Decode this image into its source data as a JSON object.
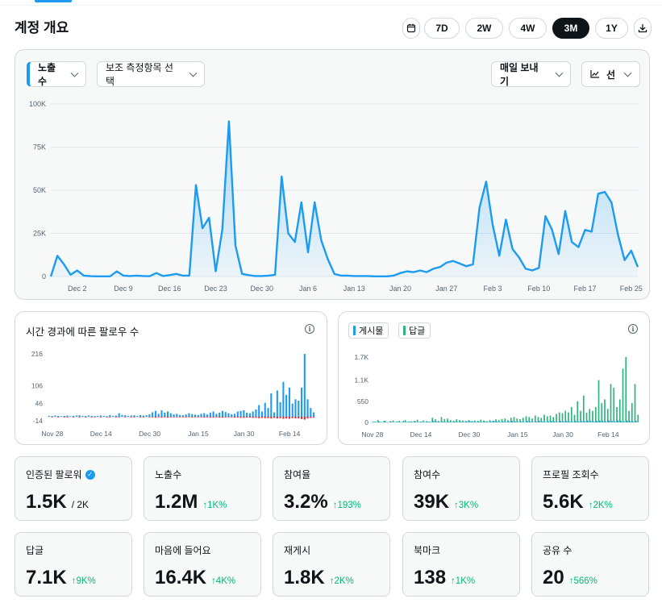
{
  "header": {
    "title": "계정 개요",
    "ranges": [
      "7D",
      "2W",
      "4W",
      "3M",
      "1Y"
    ],
    "active_range": "3M"
  },
  "main_chart_controls": {
    "metric_label": "노출수",
    "secondary_label": "보조 측정항목 선택",
    "export_label": "매일 보내기",
    "chart_type_label": "선"
  },
  "followers_chart": {
    "title": "시간 경과에 따른 팔로우 수"
  },
  "posts_chart": {
    "legend_posts": "게시물",
    "legend_replies": "답글"
  },
  "colors": {
    "accent": "#1d9bf0",
    "positive": "#00ba7c",
    "negative": "#f4212e",
    "reply_green": "#2db37e"
  },
  "chart_data": [
    {
      "type": "area",
      "title": "노출수",
      "ylim": [
        0,
        100000
      ],
      "yticks": [
        0,
        25000,
        50000,
        75000,
        100000
      ],
      "ytick_labels": [
        "0",
        "25K",
        "50K",
        "75K",
        "100K"
      ],
      "xtick_labels": [
        "Dec 2",
        "Dec 9",
        "Dec 16",
        "Dec 23",
        "Dec 30",
        "Jan 6",
        "Jan 13",
        "Jan 20",
        "Jan 27",
        "Feb 3",
        "Feb 10",
        "Feb 17",
        "Feb 25"
      ],
      "xtick_index": [
        4,
        11,
        18,
        25,
        32,
        39,
        46,
        53,
        60,
        67,
        74,
        81,
        88
      ],
      "values": [
        0,
        12000,
        7000,
        1000,
        3500,
        500,
        200,
        100,
        100,
        100,
        3000,
        500,
        300,
        500,
        300,
        200,
        2000,
        300,
        800,
        1500,
        500,
        500,
        53000,
        28000,
        34000,
        3000,
        27000,
        90000,
        18000,
        1500,
        800,
        300,
        300,
        500,
        1000,
        58000,
        25000,
        20000,
        43000,
        14000,
        43000,
        21000,
        10000,
        1500,
        500,
        500,
        300,
        300,
        300,
        100,
        100,
        100,
        500,
        2000,
        3000,
        2500,
        3500,
        2500,
        4500,
        5500,
        8000,
        9000,
        7500,
        6000,
        7000,
        40000,
        55000,
        30000,
        12000,
        33000,
        16000,
        11000,
        4500,
        3500,
        5000,
        35000,
        27000,
        13000,
        38000,
        20000,
        17000,
        27000,
        26000,
        48000,
        49000,
        43000,
        24000,
        9500,
        15000,
        5500
      ]
    },
    {
      "type": "bar",
      "title": "시간 경과에 따른 팔로우 수",
      "ylim": [
        -14,
        216
      ],
      "yticks": [
        -14,
        46,
        106,
        216
      ],
      "ytick_labels": [
        "-14",
        "46",
        "106",
        "216"
      ],
      "xtick_labels": [
        "Nov 28",
        "Dec 14",
        "Dec 30",
        "Jan 15",
        "Jan 30",
        "Feb 14"
      ],
      "xtick_index": [
        0,
        16,
        32,
        48,
        63,
        78
      ],
      "series": [
        {
          "name": "gain",
          "values": [
            3,
            2,
            4,
            3,
            2,
            3,
            4,
            2,
            3,
            4,
            5,
            3,
            2,
            4,
            3,
            2,
            3,
            4,
            3,
            2,
            6,
            3,
            4,
            12,
            6,
            5,
            3,
            4,
            5,
            3,
            6,
            4,
            5,
            8,
            15,
            20,
            10,
            22,
            14,
            18,
            12,
            8,
            10,
            6,
            5,
            8,
            12,
            9,
            7,
            6,
            10,
            12,
            8,
            14,
            18,
            10,
            14,
            20,
            16,
            12,
            8,
            10,
            18,
            20,
            22,
            14,
            12,
            18,
            25,
            40,
            18,
            48,
            30,
            80,
            15,
            90,
            50,
            120,
            75,
            100,
            45,
            60,
            55,
            100,
            216,
            60,
            30,
            15
          ]
        },
        {
          "name": "loss",
          "values": [
            0,
            -1,
            0,
            -1,
            0,
            -1,
            -1,
            0,
            -1,
            0,
            -1,
            0,
            -1,
            0,
            -1,
            -1,
            0,
            -1,
            0,
            -1,
            -1,
            0,
            -1,
            -1,
            0,
            -1,
            0,
            -1,
            -1,
            0,
            -1,
            -1,
            0,
            -1,
            -2,
            -3,
            -2,
            -3,
            -2,
            -3,
            -2,
            -2,
            -2,
            -1,
            -2,
            -2,
            -2,
            -1,
            -2,
            -2,
            -2,
            -3,
            -2,
            -3,
            -3,
            -2,
            -3,
            -3,
            -2,
            -2,
            -2,
            -3,
            -3,
            -4,
            -4,
            -3,
            -3,
            -4,
            -4,
            -5,
            -4,
            -5,
            -5,
            -6,
            -4,
            -6,
            -5,
            -7,
            -6,
            -7,
            -5,
            -6,
            -6,
            -8,
            -10,
            -6,
            -4,
            -3
          ]
        }
      ]
    },
    {
      "type": "bar",
      "title": "게시물 / 답글",
      "ylim": [
        0,
        1700
      ],
      "yticks": [
        0,
        550,
        1100,
        1700
      ],
      "ytick_labels": [
        "0",
        "550",
        "1.1K",
        "1.7K"
      ],
      "xtick_labels": [
        "Nov 28",
        "Dec 14",
        "Dec 30",
        "Jan 15",
        "Jan 30",
        "Feb 14"
      ],
      "xtick_index": [
        0,
        16,
        32,
        48,
        63,
        78
      ],
      "series": [
        {
          "name": "게시물",
          "values": [
            2,
            1,
            2,
            1,
            3,
            1,
            2,
            1,
            2,
            1,
            3,
            1,
            2,
            1,
            2,
            1,
            2,
            1,
            2,
            1,
            3,
            2,
            1,
            2,
            1,
            2,
            1,
            2,
            1,
            2,
            1,
            2,
            3,
            2,
            1,
            2,
            1,
            2,
            1,
            2,
            3,
            2,
            1,
            2,
            1,
            2,
            3,
            2,
            1,
            2,
            1,
            3,
            2,
            1,
            2,
            3,
            2,
            1,
            2,
            3,
            2,
            1,
            3,
            2,
            3,
            2,
            1,
            3,
            2,
            3,
            2,
            4,
            3,
            2,
            3,
            4,
            3,
            2,
            4,
            3,
            2,
            4,
            3,
            2,
            4,
            3,
            2,
            3
          ]
        },
        {
          "name": "답글",
          "values": [
            20,
            60,
            10,
            40,
            5,
            30,
            50,
            15,
            40,
            10,
            60,
            20,
            30,
            40,
            70,
            20,
            50,
            30,
            20,
            120,
            80,
            40,
            140,
            90,
            100,
            60,
            40,
            80,
            60,
            50,
            40,
            60,
            30,
            50,
            40,
            70,
            50,
            30,
            60,
            40,
            80,
            60,
            90,
            100,
            60,
            120,
            140,
            100,
            80,
            120,
            160,
            140,
            100,
            180,
            140,
            120,
            200,
            160,
            180,
            140,
            220,
            260,
            240,
            300,
            260,
            400,
            200,
            550,
            300,
            700,
            250,
            350,
            300,
            400,
            1100,
            500,
            600,
            350,
            1000,
            900,
            400,
            600,
            1400,
            1700,
            300,
            500,
            1000,
            200
          ]
        }
      ]
    }
  ],
  "stats": [
    {
      "label": "인증된 팔로워",
      "value": "1.5K",
      "sub": "/ 2K",
      "delta": ""
    },
    {
      "label": "노출수",
      "value": "1.2M",
      "sub": "",
      "delta": "↑1K%"
    },
    {
      "label": "참여율",
      "value": "3.2%",
      "sub": "",
      "delta": "↑193%"
    },
    {
      "label": "참여수",
      "value": "39K",
      "sub": "",
      "delta": "↑3K%"
    },
    {
      "label": "프로필 조회수",
      "value": "5.6K",
      "sub": "",
      "delta": "↑2K%"
    },
    {
      "label": "답글",
      "value": "7.1K",
      "sub": "",
      "delta": "↑9K%"
    },
    {
      "label": "마음에 들어요",
      "value": "16.4K",
      "sub": "",
      "delta": "↑4K%"
    },
    {
      "label": "재게시",
      "value": "1.8K",
      "sub": "",
      "delta": "↑2K%"
    },
    {
      "label": "북마크",
      "value": "138",
      "sub": "",
      "delta": "↑1K%"
    },
    {
      "label": "공유 수",
      "value": "20",
      "sub": "",
      "delta": "↑566%"
    }
  ]
}
